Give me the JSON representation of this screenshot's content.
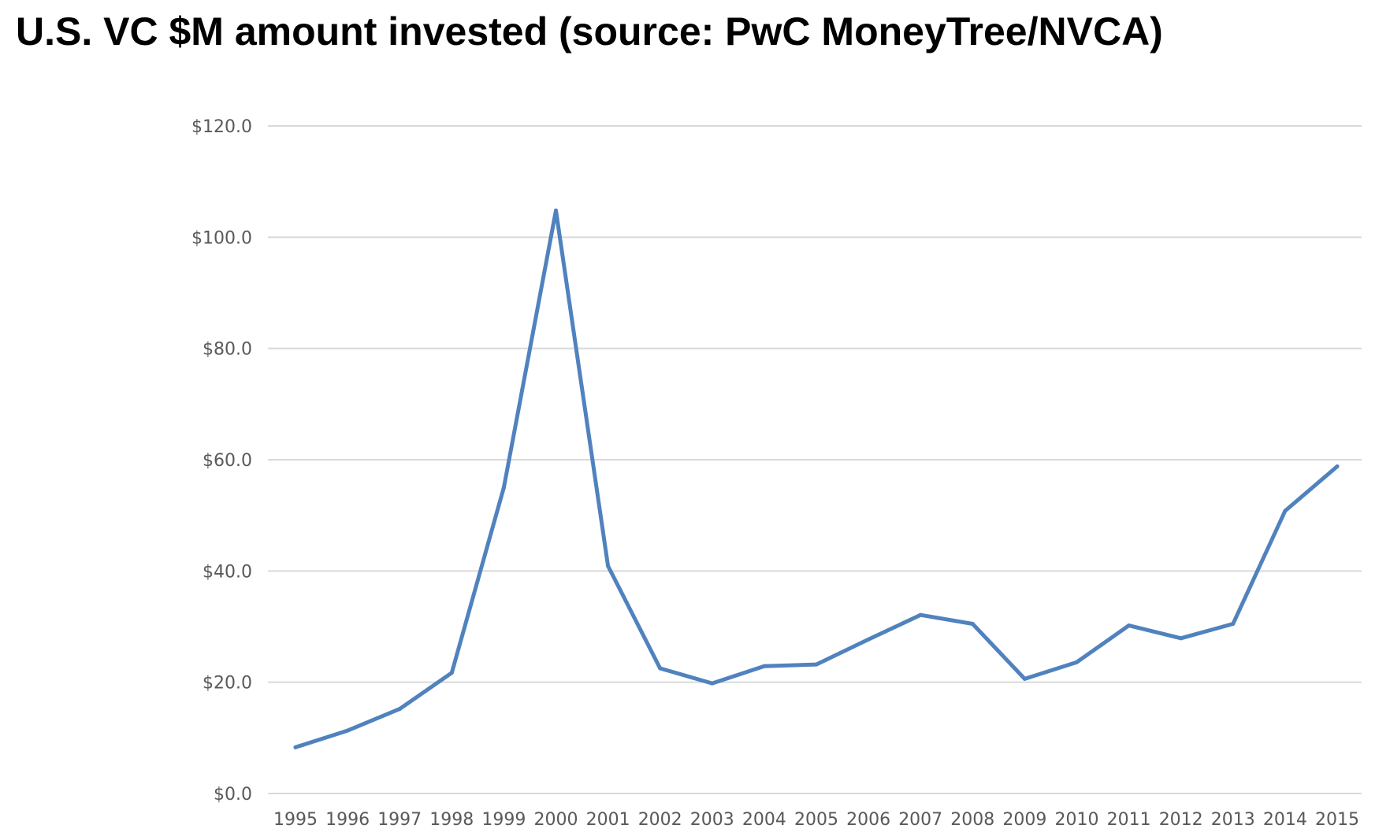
{
  "chart_data": {
    "type": "line",
    "title": "U.S. VC $M amount invested (source: PwC MoneyTree/NVCA)",
    "xlabel": "",
    "ylabel": "",
    "categories": [
      "1995",
      "1996",
      "1997",
      "1998",
      "1999",
      "2000",
      "2001",
      "2002",
      "2003",
      "2004",
      "2005",
      "2006",
      "2007",
      "2008",
      "2009",
      "2010",
      "2011",
      "2012",
      "2013",
      "2014",
      "2015"
    ],
    "series": [
      {
        "values": [
          8.3,
          11.3,
          15.2,
          21.7,
          55.0,
          104.8,
          40.9,
          22.5,
          19.8,
          22.9,
          23.2,
          27.7,
          32.1,
          30.5,
          20.6,
          23.6,
          30.2,
          27.9,
          30.5,
          50.8,
          58.8
        ]
      }
    ],
    "ylim": [
      0,
      120
    ],
    "yticks": [
      0,
      20,
      40,
      60,
      80,
      100,
      120
    ],
    "ytick_labels": [
      "$0.0",
      "$20.0",
      "$40.0",
      "$60.0",
      "$80.0",
      "$100.0",
      "$120.0"
    ],
    "grid": true,
    "legend": "none",
    "line_color": "#5082BE",
    "grid_color": "#D9D9D9"
  }
}
